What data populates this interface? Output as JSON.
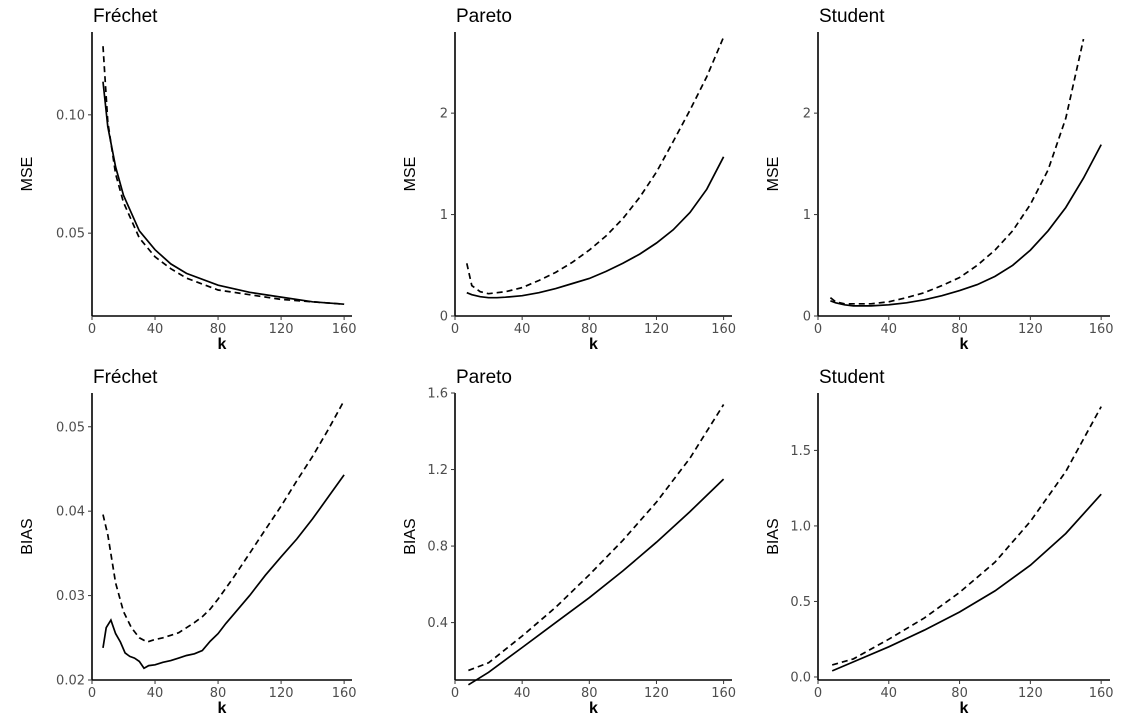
{
  "chart_data": [
    {
      "type": "line",
      "title": "Fréchet",
      "xlabel": "k",
      "ylabel": "MSE",
      "xlim": [
        0,
        165
      ],
      "ylim": [
        0.015,
        0.135
      ],
      "xticks": [
        0,
        40,
        80,
        120,
        160
      ],
      "yticks": [
        0.05,
        0.1
      ],
      "ytick_labels": [
        "0.05",
        "0.10"
      ],
      "series": [
        {
          "linestyle": "solid",
          "x": [
            7,
            10,
            15,
            20,
            30,
            40,
            50,
            60,
            80,
            100,
            120,
            140,
            160
          ],
          "y": [
            0.114,
            0.095,
            0.078,
            0.066,
            0.051,
            0.043,
            0.037,
            0.033,
            0.028,
            0.025,
            0.023,
            0.021,
            0.02
          ]
        },
        {
          "linestyle": "dashed",
          "x": [
            7,
            10,
            15,
            20,
            30,
            40,
            50,
            60,
            80,
            100,
            120,
            140,
            160
          ],
          "y": [
            0.129,
            0.097,
            0.075,
            0.063,
            0.048,
            0.04,
            0.035,
            0.031,
            0.026,
            0.024,
            0.022,
            0.021,
            0.02
          ]
        }
      ]
    },
    {
      "type": "line",
      "title": "Pareto",
      "xlabel": "k",
      "ylabel": "MSE",
      "xlim": [
        0,
        165
      ],
      "ylim": [
        0,
        2.8
      ],
      "xticks": [
        0,
        40,
        80,
        120,
        160
      ],
      "yticks": [
        0,
        1,
        2
      ],
      "ytick_labels": [
        "0",
        "1",
        "2"
      ],
      "series": [
        {
          "linestyle": "solid",
          "x": [
            7,
            10,
            15,
            20,
            25,
            30,
            40,
            50,
            60,
            70,
            80,
            90,
            100,
            110,
            120,
            130,
            140,
            150,
            160
          ],
          "y": [
            0.23,
            0.21,
            0.19,
            0.18,
            0.18,
            0.185,
            0.2,
            0.23,
            0.27,
            0.32,
            0.37,
            0.44,
            0.52,
            0.61,
            0.72,
            0.85,
            1.02,
            1.25,
            1.57
          ]
        },
        {
          "linestyle": "dashed",
          "x": [
            7,
            10,
            15,
            20,
            25,
            30,
            40,
            50,
            60,
            70,
            80,
            90,
            100,
            110,
            120,
            130,
            140,
            150,
            160
          ],
          "y": [
            0.52,
            0.3,
            0.24,
            0.22,
            0.23,
            0.24,
            0.28,
            0.35,
            0.43,
            0.53,
            0.65,
            0.79,
            0.96,
            1.17,
            1.42,
            1.72,
            2.03,
            2.36,
            2.75
          ]
        }
      ]
    },
    {
      "type": "line",
      "title": "Student",
      "xlabel": "k",
      "ylabel": "MSE",
      "xlim": [
        0,
        165
      ],
      "ylim": [
        0,
        2.8
      ],
      "xticks": [
        0,
        40,
        80,
        120,
        160
      ],
      "yticks": [
        0,
        1,
        2
      ],
      "ytick_labels": [
        "0",
        "1",
        "2"
      ],
      "series": [
        {
          "linestyle": "solid",
          "x": [
            7,
            10,
            15,
            20,
            30,
            40,
            50,
            60,
            70,
            80,
            90,
            100,
            110,
            120,
            130,
            140,
            150,
            160
          ],
          "y": [
            0.15,
            0.13,
            0.11,
            0.1,
            0.1,
            0.11,
            0.13,
            0.16,
            0.2,
            0.25,
            0.31,
            0.39,
            0.5,
            0.65,
            0.84,
            1.07,
            1.36,
            1.69
          ]
        },
        {
          "linestyle": "dashed",
          "x": [
            7,
            10,
            15,
            20,
            30,
            40,
            50,
            60,
            70,
            80,
            90,
            100,
            110,
            120,
            130,
            140,
            150
          ],
          "y": [
            0.18,
            0.14,
            0.12,
            0.12,
            0.12,
            0.14,
            0.18,
            0.23,
            0.3,
            0.38,
            0.5,
            0.65,
            0.84,
            1.1,
            1.44,
            1.95,
            2.73
          ]
        }
      ]
    },
    {
      "type": "line",
      "title": "Fréchet",
      "xlabel": "k",
      "ylabel": "BIAS",
      "xlim": [
        0,
        165
      ],
      "ylim": [
        0.02,
        0.054
      ],
      "xticks": [
        0,
        40,
        80,
        120,
        160
      ],
      "yticks": [
        0.02,
        0.03,
        0.04,
        0.05
      ],
      "ytick_labels": [
        "0.02",
        "0.03",
        "0.04",
        "0.05"
      ],
      "series": [
        {
          "linestyle": "solid",
          "x": [
            7,
            9,
            12,
            15,
            18,
            21,
            24,
            27,
            30,
            33,
            36,
            40,
            45,
            50,
            55,
            60,
            65,
            70,
            75,
            80,
            85,
            90,
            100,
            110,
            120,
            130,
            140,
            150,
            160
          ],
          "y": [
            0.0238,
            0.0262,
            0.0271,
            0.0255,
            0.0245,
            0.0232,
            0.0228,
            0.0226,
            0.0222,
            0.0214,
            0.0217,
            0.0218,
            0.0221,
            0.0223,
            0.0226,
            0.0229,
            0.0231,
            0.0235,
            0.0246,
            0.0255,
            0.0267,
            0.0278,
            0.03,
            0.0324,
            0.0346,
            0.0367,
            0.0391,
            0.0417,
            0.0443
          ]
        },
        {
          "linestyle": "dashed",
          "x": [
            7,
            10,
            15,
            20,
            25,
            30,
            35,
            40,
            45,
            50,
            55,
            60,
            65,
            70,
            75,
            80,
            90,
            100,
            110,
            120,
            130,
            140,
            150,
            160
          ],
          "y": [
            0.0396,
            0.0372,
            0.0315,
            0.0281,
            0.0262,
            0.025,
            0.0245,
            0.0248,
            0.025,
            0.0253,
            0.0256,
            0.0262,
            0.0268,
            0.0275,
            0.0284,
            0.0296,
            0.0322,
            0.035,
            0.0378,
            0.0406,
            0.0436,
            0.0465,
            0.0497,
            0.0531
          ]
        }
      ]
    },
    {
      "type": "line",
      "title": "Pareto",
      "xlabel": "k",
      "ylabel": "BIAS",
      "xlim": [
        0,
        165
      ],
      "ylim": [
        0.1,
        1.6
      ],
      "xticks": [
        0,
        40,
        80,
        120,
        160
      ],
      "yticks": [
        0.4,
        0.8,
        1.2,
        1.6
      ],
      "ytick_labels": [
        "0.4",
        "0.8",
        "1.2",
        "1.6"
      ],
      "series": [
        {
          "linestyle": "solid",
          "x": [
            8,
            20,
            40,
            60,
            80,
            100,
            120,
            140,
            160
          ],
          "y": [
            0.075,
            0.14,
            0.27,
            0.4,
            0.53,
            0.67,
            0.82,
            0.98,
            1.15
          ]
        },
        {
          "linestyle": "dashed",
          "x": [
            8,
            20,
            40,
            60,
            80,
            100,
            120,
            140,
            160
          ],
          "y": [
            0.15,
            0.19,
            0.33,
            0.48,
            0.65,
            0.83,
            1.03,
            1.26,
            1.54
          ]
        }
      ]
    },
    {
      "type": "line",
      "title": "Student",
      "xlabel": "k",
      "ylabel": "BIAS",
      "xlim": [
        0,
        165
      ],
      "ylim": [
        -0.02,
        1.88
      ],
      "xticks": [
        0,
        40,
        80,
        120,
        160
      ],
      "yticks": [
        0.0,
        0.5,
        1.0,
        1.5
      ],
      "ytick_labels": [
        "0.0",
        "0.5",
        "1.0",
        "1.5"
      ],
      "series": [
        {
          "linestyle": "solid",
          "x": [
            8,
            20,
            40,
            60,
            80,
            100,
            120,
            140,
            160
          ],
          "y": [
            0.04,
            0.1,
            0.2,
            0.31,
            0.43,
            0.57,
            0.74,
            0.95,
            1.21
          ]
        },
        {
          "linestyle": "dashed",
          "x": [
            8,
            20,
            40,
            60,
            80,
            100,
            120,
            140,
            160
          ],
          "y": [
            0.08,
            0.12,
            0.25,
            0.39,
            0.56,
            0.76,
            1.03,
            1.36,
            1.79
          ]
        }
      ]
    }
  ]
}
